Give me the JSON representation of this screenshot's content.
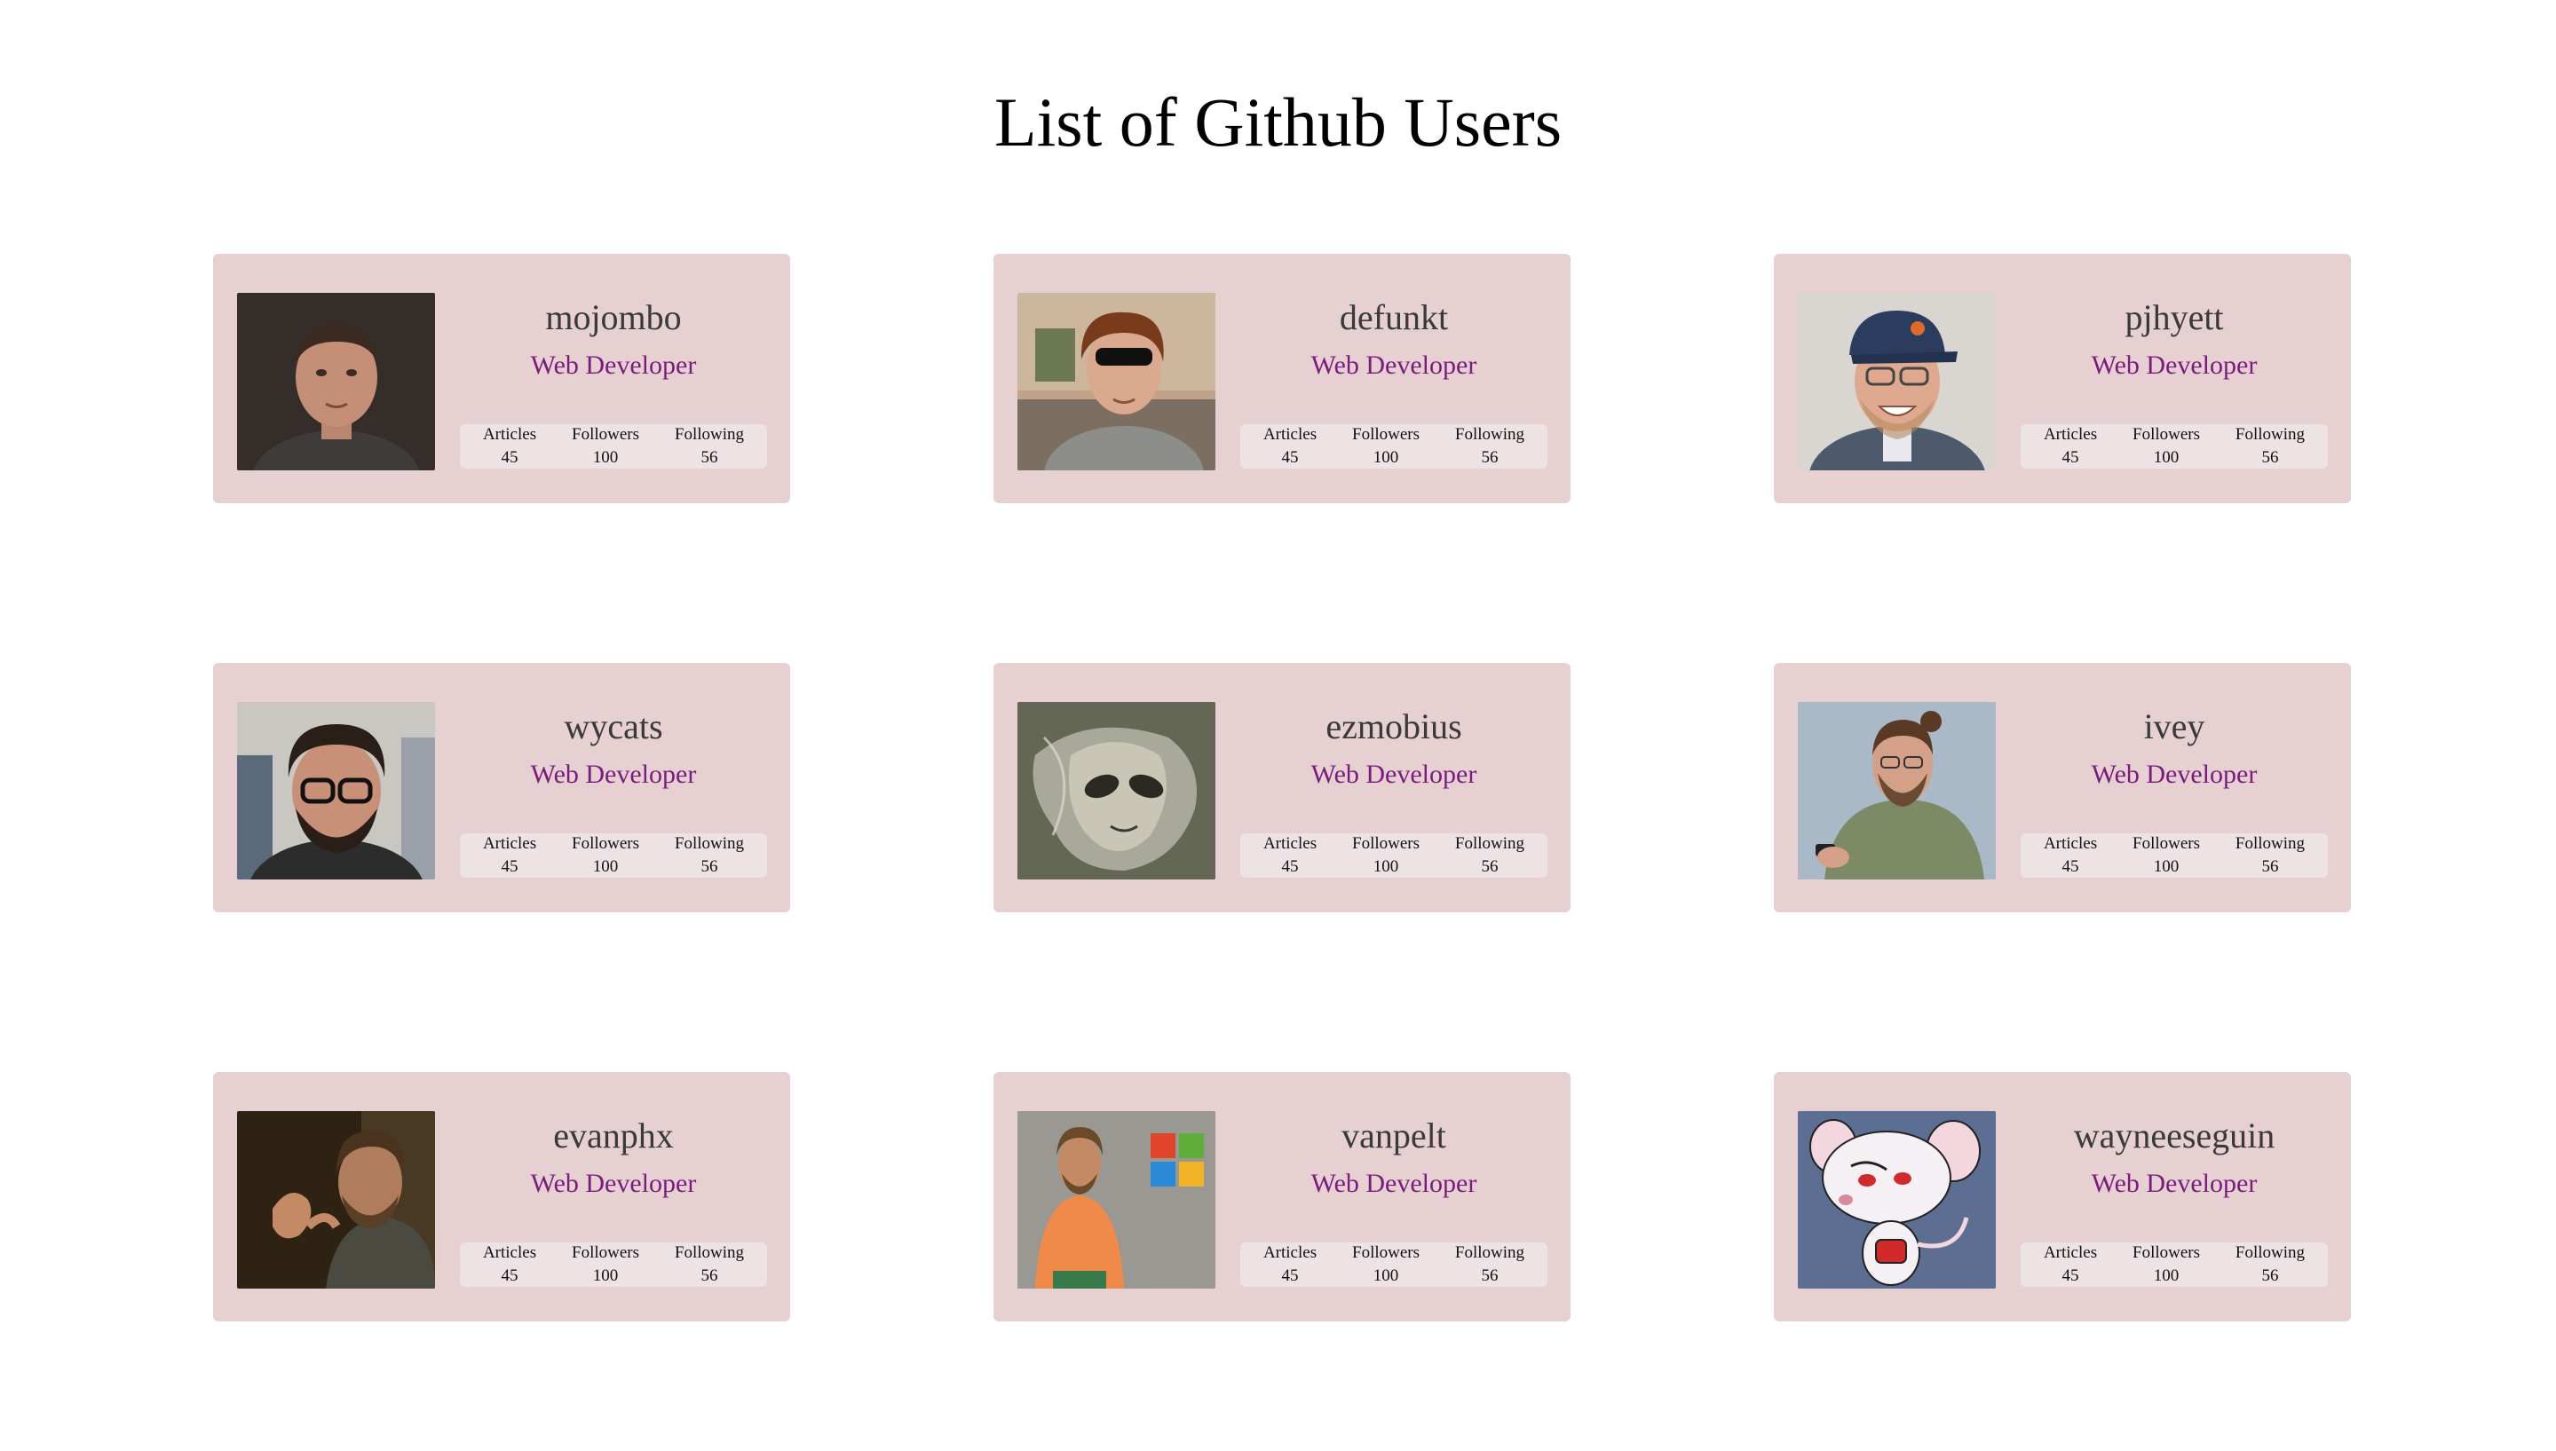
{
  "page": {
    "title": "List of Github Users"
  },
  "colors": {
    "card_background": "#e6d0d1",
    "stats_background": "#ede3e4",
    "role_text": "#7a1c7d",
    "username_text": "#3a3a3a"
  },
  "stat_labels": {
    "articles": "Articles",
    "followers": "Followers",
    "following": "Following"
  },
  "users": [
    {
      "username": "mojombo",
      "role": "Web Developer",
      "articles": "45",
      "followers": "100",
      "following": "56",
      "avatar": "photo-portrait-dark-background"
    },
    {
      "username": "defunkt",
      "role": "Web Developer",
      "articles": "45",
      "followers": "100",
      "following": "56",
      "avatar": "photo-portrait-sunglasses"
    },
    {
      "username": "pjhyett",
      "role": "Web Developer",
      "articles": "45",
      "followers": "100",
      "following": "56",
      "avatar": "photo-portrait-cap-glasses"
    },
    {
      "username": "wycats",
      "role": "Web Developer",
      "articles": "45",
      "followers": "100",
      "following": "56",
      "avatar": "photo-portrait-glasses-beard"
    },
    {
      "username": "ezmobius",
      "role": "Web Developer",
      "articles": "45",
      "followers": "100",
      "following": "56",
      "avatar": "alien-artwork"
    },
    {
      "username": "ivey",
      "role": "Web Developer",
      "articles": "45",
      "followers": "100",
      "following": "56",
      "avatar": "photo-man-with-phone"
    },
    {
      "username": "evanphx",
      "role": "Web Developer",
      "articles": "45",
      "followers": "100",
      "following": "56",
      "avatar": "photo-portrait-gesturing"
    },
    {
      "username": "vanpelt",
      "role": "Web Developer",
      "articles": "45",
      "followers": "100",
      "following": "56",
      "avatar": "photo-man-orange-shirt-windows-logo"
    },
    {
      "username": "wayneeseguin",
      "role": "Web Developer",
      "articles": "45",
      "followers": "100",
      "following": "56",
      "avatar": "cartoon-mouse"
    }
  ]
}
